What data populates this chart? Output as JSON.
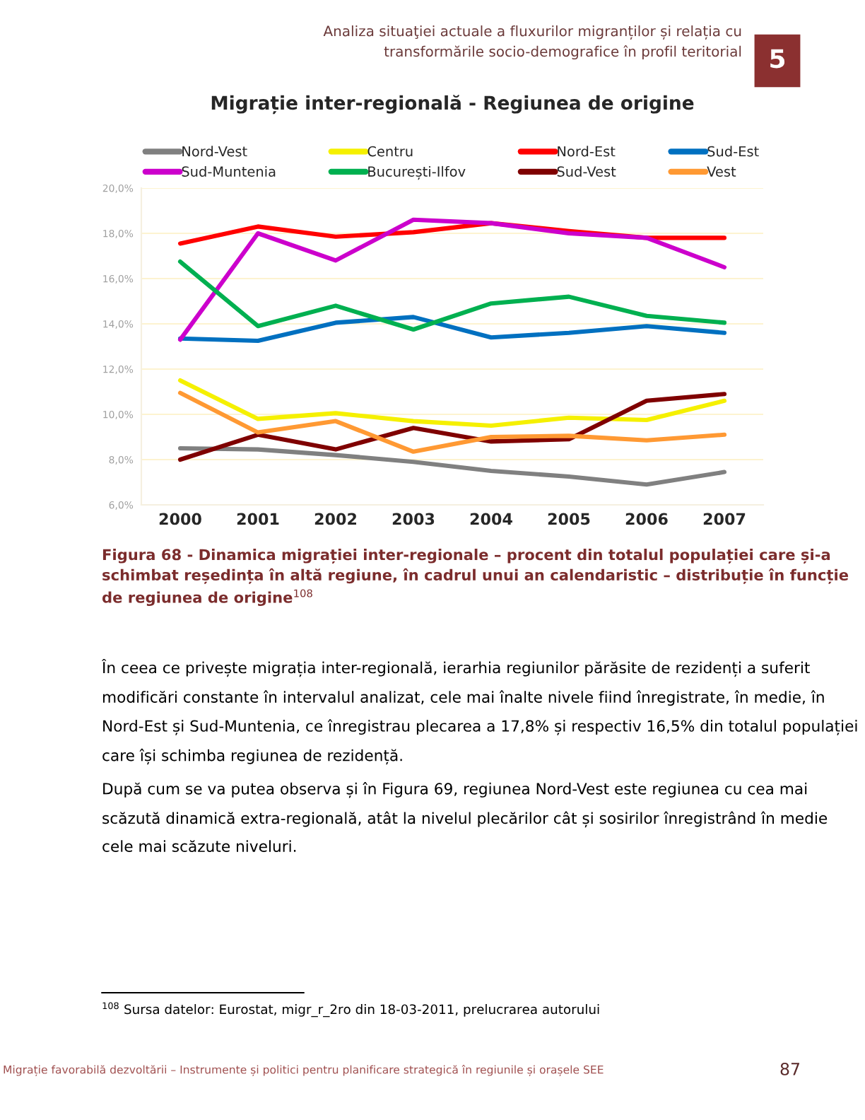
{
  "chart_data": {
    "type": "line",
    "title": "Migrație inter-regională - Regiunea de origine",
    "categories": [
      "2000",
      "2001",
      "2002",
      "2003",
      "2004",
      "2005",
      "2006",
      "2007"
    ],
    "series": [
      {
        "name": "Nord-Vest",
        "color": "#808080",
        "values": [
          8.5,
          8.45,
          8.2,
          7.9,
          7.5,
          7.25,
          6.9,
          7.45
        ]
      },
      {
        "name": "Centru",
        "color": "#f5f000",
        "values": [
          11.5,
          9.8,
          10.05,
          9.7,
          9.5,
          9.85,
          9.75,
          10.6
        ]
      },
      {
        "name": "Nord-Est",
        "color": "#ff0000",
        "values": [
          17.55,
          18.3,
          17.85,
          18.05,
          18.45,
          18.1,
          17.8,
          17.8
        ]
      },
      {
        "name": "Sud-Est",
        "color": "#0070c0",
        "values": [
          13.35,
          13.25,
          14.05,
          14.3,
          13.4,
          13.6,
          13.9,
          13.6
        ]
      },
      {
        "name": "Sud-Muntenia",
        "color": "#cc00cc",
        "values": [
          13.3,
          18.0,
          16.8,
          18.6,
          18.45,
          18.0,
          17.8,
          16.5
        ]
      },
      {
        "name": "București-Ilfov",
        "color": "#00b050",
        "values": [
          16.75,
          13.9,
          14.8,
          13.75,
          14.9,
          15.2,
          14.35,
          14.05
        ]
      },
      {
        "name": "Sud-Vest",
        "color": "#7f0000",
        "values": [
          8.0,
          9.1,
          8.45,
          9.4,
          8.8,
          8.9,
          10.6,
          10.9
        ]
      },
      {
        "name": "Vest",
        "color": "#ff9933",
        "values": [
          10.95,
          9.2,
          9.7,
          8.35,
          9.0,
          9.05,
          8.85,
          9.1
        ]
      }
    ],
    "ylim": [
      6,
      20
    ],
    "yticks": [
      {
        "value": 6,
        "label": "6,0%"
      },
      {
        "value": 8,
        "label": "8,0%"
      },
      {
        "value": 10,
        "label": "10,0%"
      },
      {
        "value": 12,
        "label": "12,0%"
      },
      {
        "value": 14,
        "label": "14,0%"
      },
      {
        "value": 16,
        "label": "16,0%"
      },
      {
        "value": 18,
        "label": "18,0%"
      },
      {
        "value": 20,
        "label": "20,0%"
      }
    ],
    "grid": "y",
    "legend": "top",
    "marker": "none",
    "line_style": "solid",
    "annotations": [
      "Analiza situaţiei actuale a fluxurilor migranților și relația cu\ntransformările socio-demografice în profil teritorial",
      "5",
      "Figura 68 - Dinamica migrației inter-regionale – procent din totalul populației care și-a schimbat reședința în altă regiune, în cadrul unui an calendaristic – distribuție în funcție de regiunea de origine$^{108}$",
      "În ceea ce privește migrația inter-regională, ierarhia regiunilor părăsite de rezidenți a suferit modificări constante în intervalul analizat, cele mai înalte nivele fiind înregistrate, în medie, în Nord-Est și Sud-Muntenia, ce înregistrau plecarea a 17,8% și respectiv 16,5% din totalul populației care își schimba regiunea de rezidență.",
      "După cum se va putea observa și în Figura 69, regiunea Nord-Vest este regiunea cu cea mai scăzută dinamică extra-regională, atât la nivelul plecărilor cât și sosirilor înregistrând în medie cele mai scăzute niveluri.",
      "$^{108}$ Sursa datelor: Eurostat, migr_r_2ro din 18-03-2011, prelucrarea autorului",
      "Migrație favorabilă dezvoltării – Instrumente și politici pentru planificare strategică în regiunile și orașele SEE",
      "87"
    ]
  }
}
